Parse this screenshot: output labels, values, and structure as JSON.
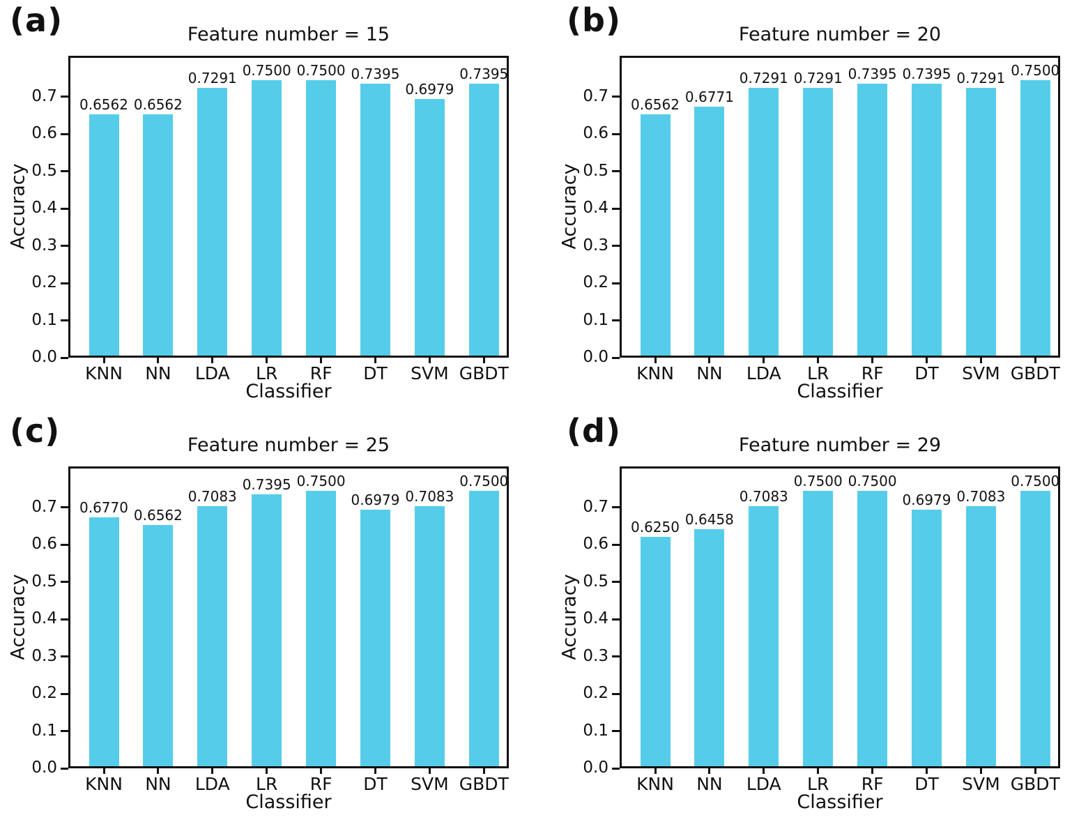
{
  "figure": {
    "ylabel": "Accuracy",
    "xlabel": "Classifier",
    "yticks": [
      "0.0",
      "0.1",
      "0.2",
      "0.3",
      "0.4",
      "0.5",
      "0.6",
      "0.7"
    ],
    "colors": {
      "bar": "#55CDEA",
      "axis": "#111111",
      "text": "#111111",
      "background": "#ffffff"
    }
  },
  "chart_data": [
    {
      "type": "bar",
      "panel_label": "(a)",
      "title": "Feature number = 15",
      "xlabel": "Classifier",
      "ylabel": "Accuracy",
      "categories": [
        "KNN",
        "NN",
        "LDA",
        "LR",
        "RF",
        "DT",
        "SVM",
        "GBDT"
      ],
      "values": [
        0.6562,
        0.6562,
        0.7291,
        0.75,
        0.75,
        0.7395,
        0.6979,
        0.7395
      ],
      "value_labels": [
        "0.6562",
        "0.6562",
        "0.7291",
        "0.7500",
        "0.7500",
        "0.7395",
        "0.6979",
        "0.7395"
      ],
      "ytick_labels": [
        "0.0",
        "0.1",
        "0.2",
        "0.3",
        "0.4",
        "0.5",
        "0.6",
        "0.7"
      ],
      "ylim": [
        0,
        0.81
      ],
      "grid": false
    },
    {
      "type": "bar",
      "panel_label": "(b)",
      "title": "Feature number = 20",
      "xlabel": "Classifier",
      "ylabel": "Accuracy",
      "categories": [
        "KNN",
        "NN",
        "LDA",
        "LR",
        "RF",
        "DT",
        "SVM",
        "GBDT"
      ],
      "values": [
        0.6562,
        0.6771,
        0.7291,
        0.7291,
        0.7395,
        0.7395,
        0.7291,
        0.75
      ],
      "value_labels": [
        "0.6562",
        "0.6771",
        "0.7291",
        "0.7291",
        "0.7395",
        "0.7395",
        "0.7291",
        "0.7500"
      ],
      "ytick_labels": [
        "0.0",
        "0.1",
        "0.2",
        "0.3",
        "0.4",
        "0.5",
        "0.6",
        "0.7"
      ],
      "ylim": [
        0,
        0.81
      ],
      "grid": false
    },
    {
      "type": "bar",
      "panel_label": "(c)",
      "title": "Feature number = 25",
      "xlabel": "Classifier",
      "ylabel": "Accuracy",
      "categories": [
        "KNN",
        "NN",
        "LDA",
        "LR",
        "RF",
        "DT",
        "SVM",
        "GBDT"
      ],
      "values": [
        0.677,
        0.6562,
        0.7083,
        0.7395,
        0.75,
        0.6979,
        0.7083,
        0.75
      ],
      "value_labels": [
        "0.6770",
        "0.6562",
        "0.7083",
        "0.7395",
        "0.7500",
        "0.6979",
        "0.7083",
        "0.7500"
      ],
      "ytick_labels": [
        "0.0",
        "0.1",
        "0.2",
        "0.3",
        "0.4",
        "0.5",
        "0.6",
        "0.7"
      ],
      "ylim": [
        0,
        0.81
      ],
      "grid": false
    },
    {
      "type": "bar",
      "panel_label": "(d)",
      "title": "Feature number = 29",
      "xlabel": "Classifier",
      "ylabel": "Accuracy",
      "categories": [
        "KNN",
        "NN",
        "LDA",
        "LR",
        "RF",
        "DT",
        "SVM",
        "GBDT"
      ],
      "values": [
        0.625,
        0.6458,
        0.7083,
        0.75,
        0.75,
        0.6979,
        0.7083,
        0.75
      ],
      "value_labels": [
        "0.6250",
        "0.6458",
        "0.7083",
        "0.7500",
        "0.7500",
        "0.6979",
        "0.7083",
        "0.7500"
      ],
      "ytick_labels": [
        "0.0",
        "0.1",
        "0.2",
        "0.3",
        "0.4",
        "0.5",
        "0.6",
        "0.7"
      ],
      "ylim": [
        0,
        0.81
      ],
      "grid": false
    }
  ]
}
